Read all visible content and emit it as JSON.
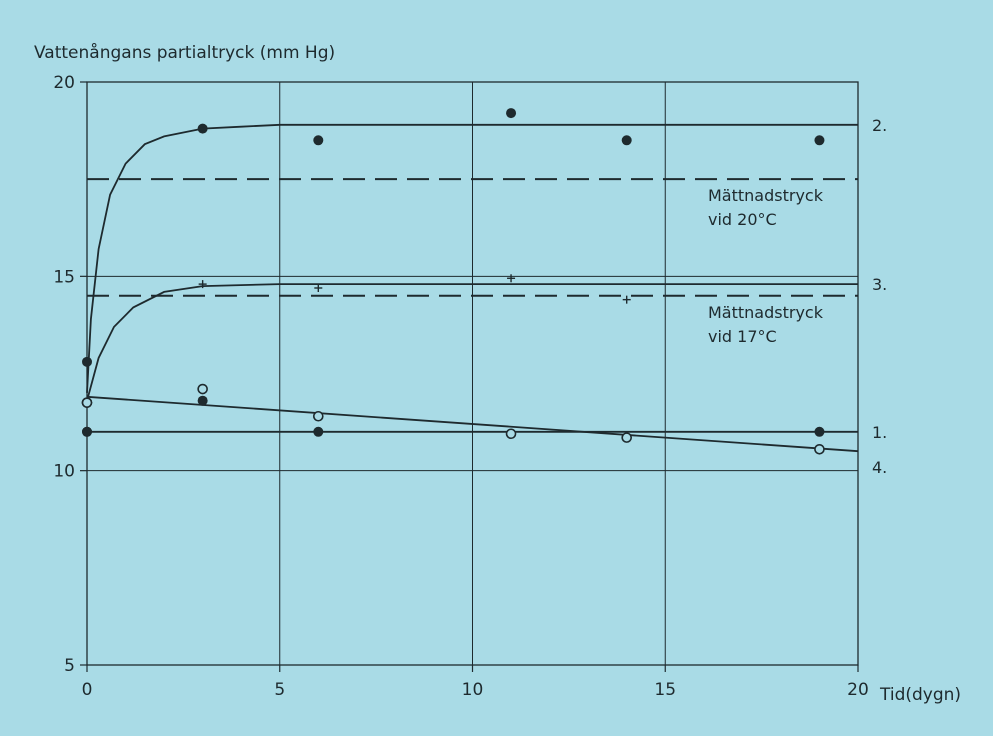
{
  "chart_data": {
    "type": "scatter",
    "title": "",
    "ylabel": "Vattenångans partialtryck (mm Hg)",
    "xlabel": "Tid(dygn)",
    "xlim": [
      0,
      20
    ],
    "ylim": [
      5,
      20
    ],
    "x_ticks": [
      "0",
      "5",
      "10",
      "15",
      "20"
    ],
    "y_ticks": [
      "5",
      "10",
      "15",
      "20"
    ],
    "x_tick_values": [
      0,
      5,
      10,
      15,
      20
    ],
    "y_tick_values": [
      5,
      10,
      15,
      20
    ],
    "grid": true,
    "series": [
      {
        "name": "1.",
        "marker": "filled-circle",
        "points": [
          [
            0,
            11
          ],
          [
            6,
            11
          ],
          [
            19,
            11
          ]
        ],
        "curve": [
          [
            0,
            11
          ],
          [
            20,
            11
          ]
        ]
      },
      {
        "name": "2.",
        "marker": "filled-circle",
        "points": [
          [
            0,
            12.8
          ],
          [
            3,
            18.8
          ],
          [
            6,
            18.5
          ],
          [
            11,
            19.2
          ],
          [
            14,
            18.5
          ],
          [
            19,
            18.5
          ]
        ],
        "curve": [
          [
            0,
            12
          ],
          [
            0.1,
            13.9
          ],
          [
            0.3,
            15.7
          ],
          [
            0.6,
            17.1
          ],
          [
            1,
            17.9
          ],
          [
            1.5,
            18.4
          ],
          [
            2,
            18.6
          ],
          [
            3,
            18.8
          ],
          [
            4,
            18.85
          ],
          [
            5,
            18.9
          ],
          [
            20,
            18.9
          ]
        ]
      },
      {
        "name": "3.",
        "marker": "plus",
        "points": [
          [
            3,
            14.8
          ],
          [
            6,
            14.7
          ],
          [
            11,
            14.95
          ],
          [
            14,
            14.4
          ]
        ],
        "curve": [
          [
            0,
            11.8
          ],
          [
            0.3,
            12.9
          ],
          [
            0.7,
            13.7
          ],
          [
            1.2,
            14.2
          ],
          [
            2,
            14.6
          ],
          [
            3,
            14.75
          ],
          [
            5,
            14.8
          ],
          [
            20,
            14.8
          ]
        ]
      },
      {
        "name": "4.",
        "marker": "open-circle",
        "points": [
          [
            0,
            11.75
          ],
          [
            3,
            12.1
          ],
          [
            6,
            11.4
          ],
          [
            11,
            10.95
          ],
          [
            14,
            10.85
          ],
          [
            19,
            10.55
          ]
        ],
        "curve": [
          [
            0,
            11.9
          ],
          [
            20,
            10.5
          ]
        ]
      }
    ],
    "reference_lines": [
      {
        "y": 17.5,
        "style": "dashed",
        "label_lines": [
          "Mättnadstryck",
          "vid 20°C"
        ]
      },
      {
        "y": 14.5,
        "style": "dashed",
        "label_lines": [
          "Mättnadstryck",
          "vid 17°C"
        ]
      }
    ],
    "extra_points": [
      {
        "marker": "filled-circle",
        "x": 0,
        "y": 11
      },
      {
        "marker": "filled-circle",
        "x": 3,
        "y": 11.8
      },
      {
        "marker": "open-circle",
        "x": 0,
        "y": 11.75
      }
    ]
  },
  "colors": {
    "background": "#a9dbe6",
    "ink": "#1e2a2e"
  }
}
